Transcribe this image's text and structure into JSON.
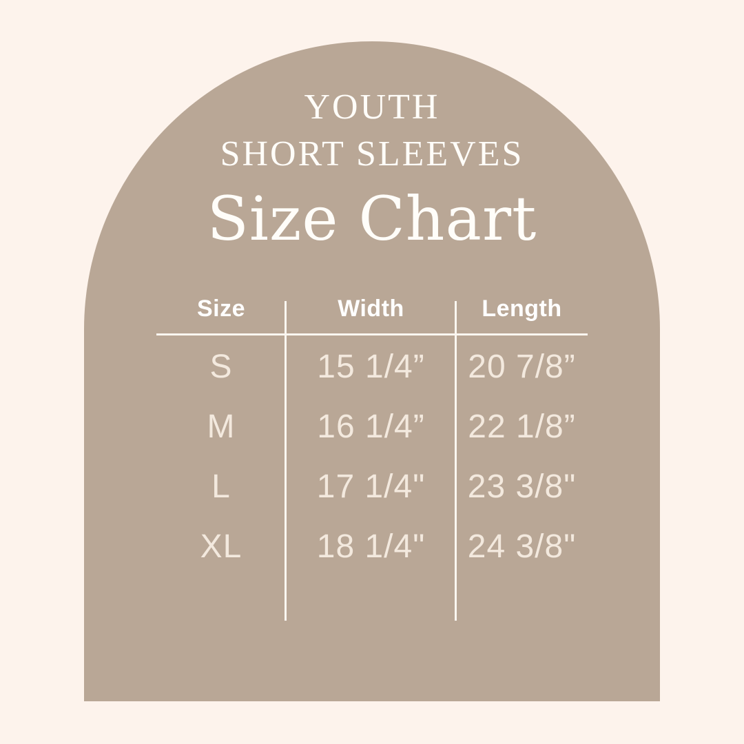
{
  "colors": {
    "background": "#fdf3ec",
    "arch": "#b9a796",
    "title_text": "#fffdf9",
    "header_text": "#ffffff",
    "row_text": "#f3e9de",
    "line": "#fcf7f1"
  },
  "title": {
    "line1": "YOUTH",
    "line2": "SHORT SLEEVES",
    "line3": "Size Chart"
  },
  "table": {
    "columns": [
      "Size",
      "Width",
      "Length"
    ],
    "rows": [
      [
        "S",
        "15 1/4”",
        "20 7/8”"
      ],
      [
        "M",
        "16 1/4”",
        "22 1/8”"
      ],
      [
        "L",
        "17 1/4\"",
        "23 3/8\""
      ],
      [
        "XL",
        "18 1/4\"",
        "24 3/8\""
      ]
    ]
  },
  "chart_data": {
    "type": "table",
    "title": "YOUTH SHORT SLEEVES Size Chart",
    "columns": [
      "Size",
      "Width",
      "Length"
    ],
    "rows": [
      {
        "size": "S",
        "width": "15 1/4”",
        "length": "20 7/8”"
      },
      {
        "size": "M",
        "width": "16 1/4”",
        "length": "22 1/8”"
      },
      {
        "size": "L",
        "width": "17 1/4\"",
        "length": "23 3/8\""
      },
      {
        "size": "XL",
        "width": "18 1/4\"",
        "length": "24 3/8\""
      }
    ]
  }
}
